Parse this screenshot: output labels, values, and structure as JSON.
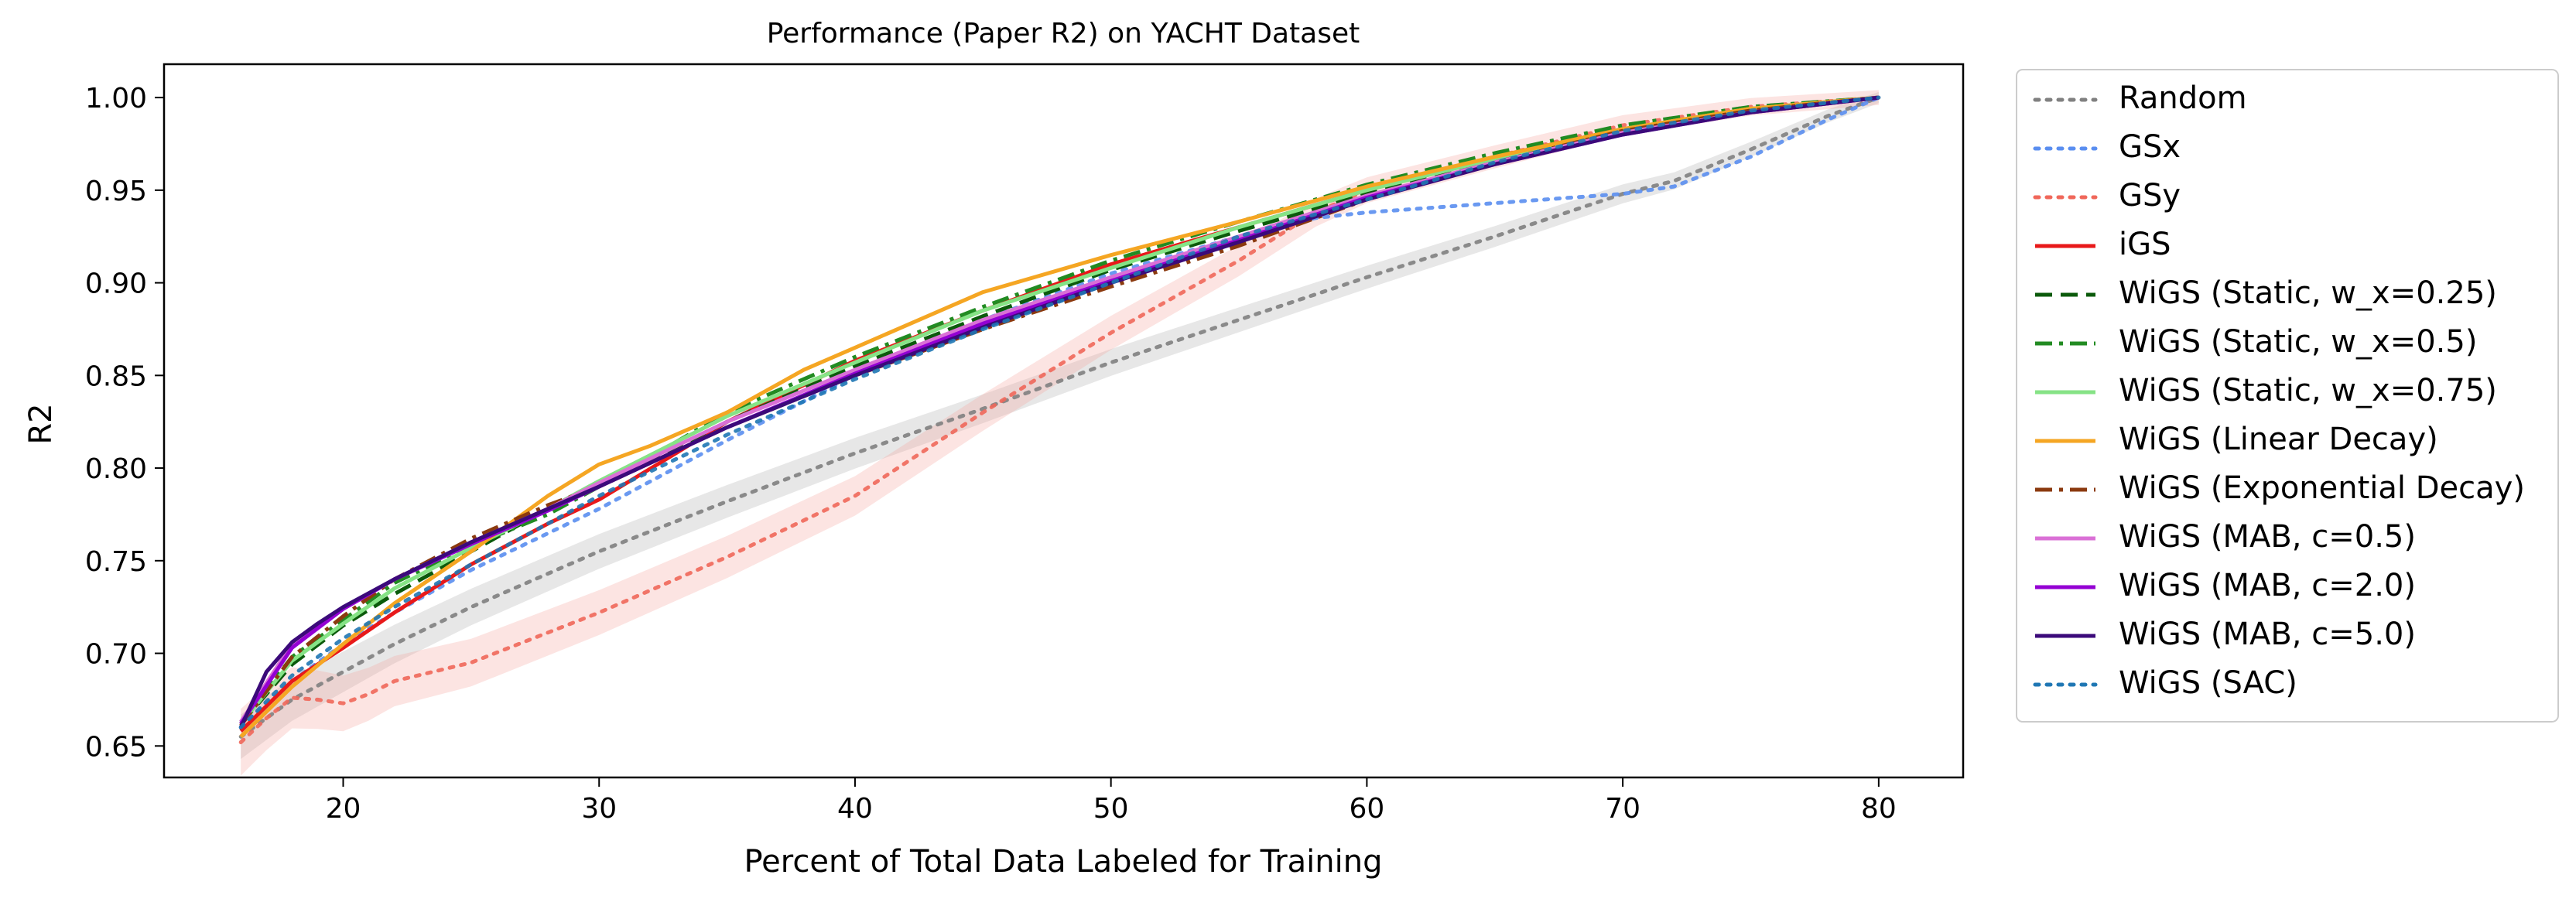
{
  "chart_data": {
    "type": "line",
    "title": "Performance (Paper R2) on YACHT Dataset",
    "xlabel": "Percent of Total Data Labeled for Training",
    "ylabel": "R2",
    "xlim": [
      13,
      83.3
    ],
    "ylim": [
      0.633,
      1.018
    ],
    "xticks": [
      20,
      30,
      40,
      50,
      60,
      70,
      80
    ],
    "xtick_labels": [
      "20",
      "30",
      "40",
      "50",
      "60",
      "70",
      "80"
    ],
    "yticks": [
      0.65,
      0.7,
      0.75,
      0.8,
      0.85,
      0.9,
      0.95,
      1.0
    ],
    "ytick_labels": [
      "0.65",
      "0.70",
      "0.75",
      "0.80",
      "0.85",
      "0.90",
      "0.95",
      "1.00"
    ],
    "grid": false,
    "legend_position": "outside-right",
    "series": [
      {
        "name": "Random",
        "color": "#808080",
        "style": "dotted",
        "band": [
          0.012,
          0.003
        ],
        "band_color": "#b0b0b0",
        "x": [
          16,
          18,
          20,
          22,
          25,
          30,
          35,
          40,
          45,
          50,
          55,
          60,
          65,
          70,
          72,
          75,
          78,
          80
        ],
        "y": [
          0.655,
          0.675,
          0.69,
          0.705,
          0.725,
          0.755,
          0.782,
          0.808,
          0.832,
          0.857,
          0.88,
          0.903,
          0.925,
          0.948,
          0.955,
          0.972,
          0.99,
          1.0
        ]
      },
      {
        "name": "GSx",
        "color": "#5a8ef0",
        "style": "dotted",
        "x": [
          16,
          18,
          20,
          22,
          25,
          30,
          35,
          40,
          45,
          50,
          55,
          58,
          60,
          65,
          70,
          72,
          75,
          78,
          80
        ],
        "y": [
          0.66,
          0.685,
          0.705,
          0.722,
          0.745,
          0.778,
          0.815,
          0.85,
          0.88,
          0.905,
          0.925,
          0.935,
          0.938,
          0.943,
          0.948,
          0.952,
          0.968,
          0.988,
          1.0
        ]
      },
      {
        "name": "GSy",
        "color": "#f0675a",
        "style": "dotted",
        "band": [
          0.018,
          0.004
        ],
        "band_color": "#f4a79f",
        "x": [
          16,
          17,
          18,
          19,
          20,
          21,
          22,
          25,
          30,
          35,
          40,
          45,
          50,
          55,
          58,
          60,
          65,
          70,
          75,
          80
        ],
        "y": [
          0.652,
          0.665,
          0.676,
          0.675,
          0.673,
          0.678,
          0.685,
          0.695,
          0.722,
          0.752,
          0.785,
          0.83,
          0.873,
          0.912,
          0.938,
          0.95,
          0.968,
          0.985,
          0.995,
          1.0
        ]
      },
      {
        "name": "iGS",
        "color": "#e8191a",
        "style": "solid",
        "x": [
          16,
          18,
          20,
          22,
          25,
          28,
          30,
          33,
          35,
          40,
          45,
          50,
          55,
          60,
          65,
          70,
          75,
          80
        ],
        "y": [
          0.658,
          0.685,
          0.703,
          0.722,
          0.748,
          0.77,
          0.783,
          0.808,
          0.825,
          0.858,
          0.885,
          0.91,
          0.93,
          0.95,
          0.968,
          0.983,
          0.993,
          1.0
        ]
      },
      {
        "name": "WiGS (Static, w_x=0.25)",
        "color": "#0b5a0b",
        "style": "dashed",
        "x": [
          16,
          18,
          20,
          22,
          25,
          28,
          30,
          35,
          40,
          45,
          50,
          55,
          60,
          65,
          70,
          75,
          80
        ],
        "y": [
          0.662,
          0.694,
          0.715,
          0.732,
          0.755,
          0.778,
          0.79,
          0.825,
          0.855,
          0.882,
          0.907,
          0.928,
          0.948,
          0.966,
          0.982,
          0.993,
          1.0
        ]
      },
      {
        "name": "WiGS (Static, w_x=0.5)",
        "color": "#228b22",
        "style": "dashdot",
        "x": [
          16,
          18,
          20,
          22,
          25,
          28,
          30,
          35,
          40,
          45,
          50,
          55,
          60,
          65,
          70,
          75,
          80
        ],
        "y": [
          0.663,
          0.698,
          0.718,
          0.738,
          0.758,
          0.775,
          0.79,
          0.83,
          0.86,
          0.887,
          0.912,
          0.933,
          0.953,
          0.97,
          0.985,
          0.995,
          1.0
        ]
      },
      {
        "name": "WiGS (Static, w_x=0.75)",
        "color": "#86e386",
        "style": "solid",
        "x": [
          16,
          18,
          20,
          22,
          25,
          28,
          30,
          35,
          40,
          45,
          50,
          55,
          60,
          65,
          70,
          75,
          80
        ],
        "y": [
          0.662,
          0.696,
          0.716,
          0.735,
          0.757,
          0.778,
          0.793,
          0.828,
          0.857,
          0.885,
          0.908,
          0.93,
          0.95,
          0.967,
          0.983,
          0.994,
          1.0
        ]
      },
      {
        "name": "WiGS (Linear Decay)",
        "color": "#f5a623",
        "style": "solid",
        "x": [
          16,
          18,
          20,
          22,
          25,
          28,
          30,
          32,
          35,
          38,
          40,
          45,
          50,
          55,
          60,
          65,
          70,
          75,
          80
        ],
        "y": [
          0.655,
          0.682,
          0.705,
          0.727,
          0.755,
          0.785,
          0.802,
          0.812,
          0.83,
          0.853,
          0.865,
          0.895,
          0.915,
          0.933,
          0.952,
          0.968,
          0.983,
          0.994,
          1.0
        ]
      },
      {
        "name": "WiGS (Exponential Decay)",
        "color": "#8b3a0f",
        "style": "dashdot",
        "x": [
          16,
          18,
          20,
          22,
          25,
          28,
          30,
          35,
          40,
          45,
          50,
          55,
          60,
          65,
          70,
          75,
          80
        ],
        "y": [
          0.661,
          0.698,
          0.72,
          0.74,
          0.762,
          0.78,
          0.79,
          0.822,
          0.85,
          0.875,
          0.898,
          0.92,
          0.945,
          0.965,
          0.982,
          0.993,
          1.0
        ]
      },
      {
        "name": "WiGS (MAB, c=0.5)",
        "color": "#da70d6",
        "style": "solid",
        "x": [
          16,
          18,
          20,
          22,
          25,
          28,
          30,
          35,
          40,
          45,
          50,
          55,
          60,
          65,
          70,
          75,
          80
        ],
        "y": [
          0.663,
          0.705,
          0.724,
          0.74,
          0.76,
          0.778,
          0.792,
          0.825,
          0.853,
          0.88,
          0.903,
          0.925,
          0.947,
          0.965,
          0.981,
          0.992,
          1.0
        ]
      },
      {
        "name": "WiGS (MAB, c=2.0)",
        "color": "#9400d3",
        "style": "solid",
        "x": [
          16,
          18,
          20,
          22,
          25,
          28,
          30,
          35,
          40,
          45,
          50,
          55,
          60,
          65,
          70,
          75,
          80
        ],
        "y": [
          0.662,
          0.703,
          0.724,
          0.74,
          0.759,
          0.777,
          0.79,
          0.822,
          0.851,
          0.878,
          0.901,
          0.923,
          0.946,
          0.964,
          0.98,
          0.992,
          1.0
        ]
      },
      {
        "name": "WiGS (MAB, c=5.0)",
        "color": "#3b0a7a",
        "style": "solid",
        "x": [
          16,
          17,
          18,
          19,
          20,
          22,
          25,
          28,
          30,
          35,
          40,
          45,
          50,
          55,
          60,
          65,
          70,
          75,
          80
        ],
        "y": [
          0.66,
          0.69,
          0.706,
          0.716,
          0.725,
          0.74,
          0.76,
          0.778,
          0.79,
          0.822,
          0.85,
          0.876,
          0.9,
          0.922,
          0.945,
          0.964,
          0.98,
          0.992,
          1.0
        ]
      },
      {
        "name": "WiGS (SAC)",
        "color": "#1f77b4",
        "style": "dotted",
        "x": [
          16,
          18,
          20,
          22,
          25,
          28,
          30,
          35,
          40,
          45,
          50,
          55,
          60,
          65,
          70,
          75,
          80
        ],
        "y": [
          0.66,
          0.688,
          0.708,
          0.725,
          0.748,
          0.77,
          0.785,
          0.818,
          0.848,
          0.875,
          0.9,
          0.925,
          0.945,
          0.965,
          0.982,
          0.993,
          1.0
        ]
      }
    ]
  }
}
